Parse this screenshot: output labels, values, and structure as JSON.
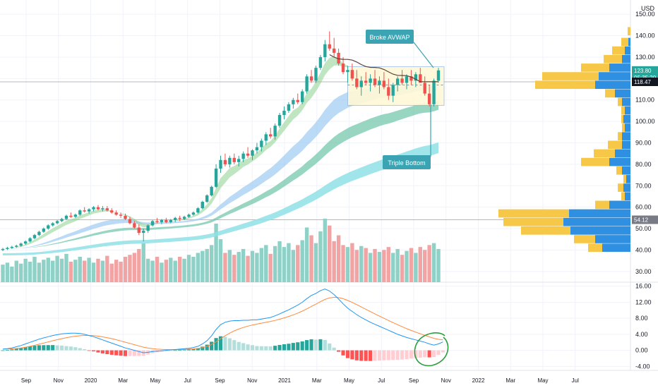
{
  "currency": "USD",
  "colors": {
    "up": "#26a69a",
    "down": "#ef5350",
    "vol_up": "#8fd1c6",
    "vol_down": "#f2a3a3",
    "vp_yellow": "#f7c848",
    "vp_blue": "#2f8fe0",
    "macd": "#2196f3",
    "signal": "#ff8a3d",
    "callout": "#3ba3b1",
    "circle": "#2e9e3e"
  },
  "chart_data": [
    {
      "type": "candlestick",
      "timeframe": "weekly",
      "y_axis_labels": [
        "150.00",
        "140.00",
        "130.00",
        "120.00",
        "110.00",
        "100.00",
        "90.00",
        "80.00",
        "70.00",
        "60.00",
        "50.00",
        "40.00",
        "30.00"
      ],
      "ylim": [
        25,
        155
      ],
      "x_axis_labels": [
        "Sep",
        "Nov",
        "2020",
        "Mar",
        "May",
        "Jul",
        "Sep",
        "Nov",
        "2021",
        "Mar",
        "May",
        "Jul",
        "Sep",
        "Nov",
        "2022",
        "Mar",
        "May",
        "Jul"
      ],
      "price_badges": [
        {
          "value": "123.80",
          "sub": "05:35:20",
          "style": "up"
        },
        {
          "value": "118.47",
          "style": "dark"
        },
        {
          "value": "54.12",
          "style": "grey"
        }
      ],
      "annotations": [
        {
          "text": "Broke AVWAP"
        },
        {
          "text": "Triple Bottom"
        }
      ],
      "candles_ohlc": [
        [
          40,
          41,
          39.5,
          40.5
        ],
        [
          40.5,
          41.5,
          40,
          41
        ],
        [
          41,
          42,
          40.5,
          41.5
        ],
        [
          41.5,
          42.5,
          41,
          42
        ],
        [
          42,
          43.5,
          41.5,
          43
        ],
        [
          43,
          44.5,
          42.5,
          44
        ],
        [
          44,
          46,
          43.5,
          45.5
        ],
        [
          45.5,
          47.5,
          45,
          47
        ],
        [
          47,
          49,
          46.5,
          48.5
        ],
        [
          48.5,
          50.5,
          48,
          50
        ],
        [
          50,
          52,
          49.5,
          51.5
        ],
        [
          51.5,
          53,
          51,
          52.5
        ],
        [
          52.5,
          54,
          52,
          53.5
        ],
        [
          53.5,
          55,
          53,
          54.5
        ],
        [
          54.5,
          56.5,
          54,
          56
        ],
        [
          56,
          57.5,
          55,
          55.5
        ],
        [
          55.5,
          57,
          55,
          56.5
        ],
        [
          56.5,
          59,
          56,
          58.5
        ],
        [
          58.5,
          60,
          57.5,
          58
        ],
        [
          58,
          59.5,
          57,
          59
        ],
        [
          59,
          60.5,
          58,
          60
        ],
        [
          60,
          61,
          58.5,
          59
        ],
        [
          59,
          60.5,
          58,
          59.5
        ],
        [
          59.5,
          60.5,
          58,
          58.5
        ],
        [
          58.5,
          59.5,
          57,
          57.5
        ],
        [
          57.5,
          58.5,
          56,
          56.5
        ],
        [
          56.5,
          57.5,
          55,
          56
        ],
        [
          56,
          57,
          54,
          54.5
        ],
        [
          54.5,
          55.5,
          52,
          52.5
        ],
        [
          52.5,
          53.5,
          50,
          50.5
        ],
        [
          50.5,
          52,
          47,
          48
        ],
        [
          48,
          50,
          44,
          49
        ],
        [
          49,
          52,
          48,
          51.5
        ],
        [
          51.5,
          54,
          51,
          53.5
        ],
        [
          53.5,
          55,
          52.5,
          53
        ],
        [
          53,
          54.5,
          52,
          54
        ],
        [
          54,
          55,
          52.5,
          53
        ],
        [
          53,
          54.5,
          52.5,
          54
        ],
        [
          54,
          55.5,
          53,
          55
        ],
        [
          55,
          56,
          53.5,
          54.5
        ],
        [
          54.5,
          56,
          54,
          55.5
        ],
        [
          55.5,
          57,
          55,
          56.5
        ],
        [
          56.5,
          58,
          56,
          57.5
        ],
        [
          57.5,
          60,
          57,
          59.5
        ],
        [
          59.5,
          63,
          59,
          62.5
        ],
        [
          62.5,
          66,
          62,
          65.5
        ],
        [
          65.5,
          70,
          65,
          69.5
        ],
        [
          69.5,
          80,
          69,
          78
        ],
        [
          78,
          84,
          76,
          82
        ],
        [
          82,
          85,
          79,
          80
        ],
        [
          80,
          84,
          78.5,
          83
        ],
        [
          83,
          85,
          80,
          81
        ],
        [
          81,
          84,
          79,
          82.5
        ],
        [
          82.5,
          86,
          81,
          85
        ],
        [
          85,
          88,
          83,
          84
        ],
        [
          84,
          87,
          82,
          86.5
        ],
        [
          86.5,
          90,
          85,
          88
        ],
        [
          88,
          92,
          86,
          91
        ],
        [
          91,
          95,
          89,
          94
        ],
        [
          94,
          97,
          92,
          93
        ],
        [
          93,
          99,
          91.5,
          98
        ],
        [
          98,
          104,
          97,
          103
        ],
        [
          103,
          107,
          101,
          105
        ],
        [
          105,
          109,
          104,
          108
        ],
        [
          108,
          111,
          106,
          110
        ],
        [
          110,
          113,
          108,
          109
        ],
        [
          109,
          115,
          108,
          114
        ],
        [
          114,
          122,
          113,
          121
        ],
        [
          121,
          124,
          118,
          119
        ],
        [
          119,
          126,
          118,
          125
        ],
        [
          125,
          131,
          124,
          130
        ],
        [
          130,
          138,
          128,
          136
        ],
        [
          136,
          142,
          133,
          134
        ],
        [
          134,
          139,
          130,
          132
        ],
        [
          132,
          134,
          126,
          127
        ],
        [
          127,
          130,
          122,
          123
        ],
        [
          123,
          126,
          118,
          124
        ],
        [
          124,
          127,
          119,
          120
        ],
        [
          120,
          124,
          115,
          116
        ],
        [
          116,
          121,
          112,
          119
        ],
        [
          119,
          123,
          117,
          118
        ],
        [
          118,
          122,
          114,
          120
        ],
        [
          120,
          124,
          116,
          117
        ],
        [
          117,
          121,
          113,
          119
        ],
        [
          119,
          123,
          115,
          116
        ],
        [
          116,
          120,
          110,
          112
        ],
        [
          112,
          118,
          109,
          117
        ],
        [
          117,
          121,
          114,
          120
        ],
        [
          120,
          124,
          117,
          118
        ],
        [
          118,
          122,
          115,
          121
        ],
        [
          121,
          124,
          117,
          119
        ],
        [
          119,
          123,
          116,
          122
        ],
        [
          122,
          125,
          119,
          118
        ],
        [
          118,
          121,
          112,
          113
        ],
        [
          113,
          117,
          107,
          108
        ],
        [
          108,
          120,
          107,
          119
        ],
        [
          119,
          125,
          118,
          123.8
        ]
      ],
      "volume": [
        18,
        20,
        16,
        22,
        19,
        24,
        21,
        26,
        20,
        23,
        25,
        22,
        27,
        24,
        29,
        21,
        23,
        26,
        22,
        25,
        20,
        24,
        22,
        27,
        19,
        23,
        21,
        26,
        28,
        30,
        34,
        40,
        24,
        22,
        26,
        20,
        23,
        25,
        22,
        26,
        24,
        28,
        26,
        30,
        32,
        34,
        38,
        60,
        44,
        30,
        33,
        28,
        31,
        34,
        27,
        32,
        30,
        35,
        38,
        29,
        37,
        42,
        36,
        40,
        33,
        38,
        43,
        56,
        48,
        40,
        52,
        65,
        58,
        42,
        48,
        38,
        36,
        40,
        33,
        37,
        35,
        30,
        34,
        31,
        33,
        36,
        30,
        34,
        28,
        32,
        35,
        30,
        36,
        33,
        38,
        40,
        34
      ],
      "vp_profile": [
        {
          "price": 142,
          "yellow": 4,
          "blue": 0
        },
        {
          "price": 137,
          "yellow": 10,
          "blue": 3
        },
        {
          "price": 133,
          "yellow": 18,
          "blue": 8
        },
        {
          "price": 129,
          "yellow": 26,
          "blue": 12
        },
        {
          "price": 125,
          "yellow": 40,
          "blue": 30
        },
        {
          "price": 121,
          "yellow": 80,
          "blue": 45
        },
        {
          "price": 117,
          "yellow": 85,
          "blue": 50
        },
        {
          "price": 113,
          "yellow": 14,
          "blue": 22
        },
        {
          "price": 109,
          "yellow": 6,
          "blue": 12
        },
        {
          "price": 105,
          "yellow": 5,
          "blue": 8
        },
        {
          "price": 101,
          "yellow": 3,
          "blue": 10
        },
        {
          "price": 97,
          "yellow": 4,
          "blue": 8
        },
        {
          "price": 93,
          "yellow": 6,
          "blue": 12
        },
        {
          "price": 89,
          "yellow": 20,
          "blue": 12
        },
        {
          "price": 85,
          "yellow": 30,
          "blue": 22
        },
        {
          "price": 81,
          "yellow": 40,
          "blue": 30
        },
        {
          "price": 77,
          "yellow": 8,
          "blue": 12
        },
        {
          "price": 73,
          "yellow": 4,
          "blue": 6
        },
        {
          "price": 69,
          "yellow": 8,
          "blue": 10
        },
        {
          "price": 65,
          "yellow": 5,
          "blue": 8
        },
        {
          "price": 61,
          "yellow": 20,
          "blue": 30
        },
        {
          "price": 57,
          "yellow": 100,
          "blue": 87
        },
        {
          "price": 53,
          "yellow": 85,
          "blue": 95
        },
        {
          "price": 49,
          "yellow": 70,
          "blue": 85
        },
        {
          "price": 45,
          "yellow": 30,
          "blue": 50
        },
        {
          "price": 41,
          "yellow": 20,
          "blue": 40
        }
      ]
    },
    {
      "type": "macd",
      "y_axis_labels": [
        "16.00",
        "12.00",
        "8.00",
        "4.00",
        "0.00",
        "-4.00"
      ],
      "ylim": [
        -5,
        17
      ],
      "macd_line": [
        0.3,
        0.4,
        0.6,
        0.9,
        1.2,
        1.6,
        2.0,
        2.4,
        2.8,
        3.1,
        3.4,
        3.7,
        3.9,
        4.1,
        4.2,
        4.3,
        4.3,
        4.2,
        4.0,
        3.7,
        3.4,
        3.0,
        2.6,
        2.2,
        1.8,
        1.4,
        1.0,
        0.6,
        0.3,
        0.0,
        -0.3,
        -0.6,
        -0.5,
        -0.3,
        -0.2,
        -0.1,
        0.0,
        0.1,
        0.2,
        0.3,
        0.4,
        0.5,
        0.7,
        1.0,
        1.6,
        2.4,
        3.6,
        5.2,
        6.4,
        7.0,
        7.3,
        7.4,
        7.4,
        7.5,
        7.5,
        7.6,
        7.6,
        7.8,
        8.0,
        8.2,
        8.6,
        9.1,
        9.6,
        10.1,
        10.7,
        11.3,
        12.0,
        12.9,
        13.7,
        14.2,
        14.9,
        15.3,
        14.8,
        13.9,
        12.8,
        11.6,
        10.5,
        9.7,
        8.9,
        8.2,
        7.6,
        7.0,
        6.5,
        6.0,
        5.5,
        5.0,
        4.5,
        4.0,
        3.6,
        3.2,
        2.9,
        2.6,
        2.3,
        2.0,
        1.6,
        1.3,
        1.6,
        2.1
      ]
    }
  ]
}
